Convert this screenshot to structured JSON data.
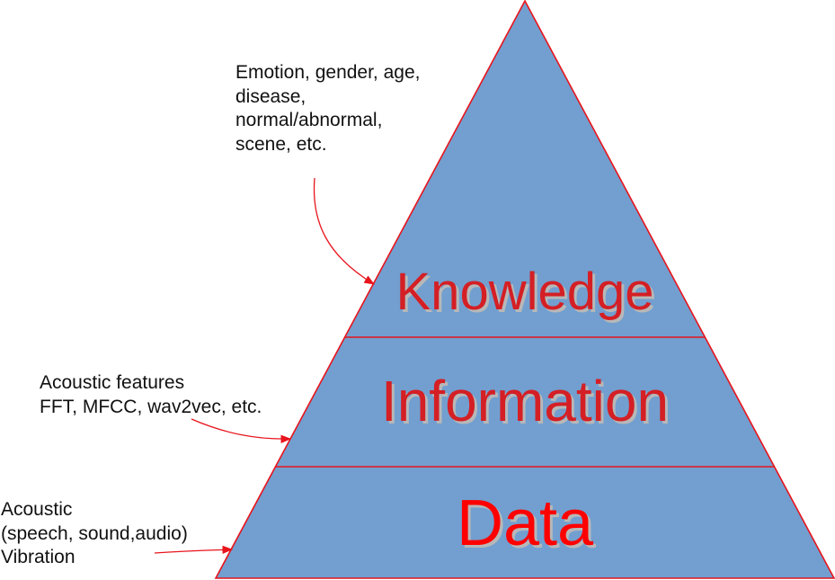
{
  "pyramid": {
    "levels": [
      {
        "label": "Knowledge"
      },
      {
        "label": "Information"
      },
      {
        "label": "Data"
      }
    ],
    "fill_color": "#729FCF",
    "outline_color": "#E8141C",
    "label_color": "#D41F25",
    "data_label_color": "#FF0000",
    "label_shadow_color": "#B8B8B8"
  },
  "annotations": {
    "knowledge": {
      "lines": [
        "Emotion, gender, age,",
        "disease,",
        "normal/abnormal,",
        "scene, etc."
      ]
    },
    "information": {
      "lines": [
        "Acoustic features",
        "FFT, MFCC, wav2vec, etc."
      ]
    },
    "data": {
      "lines": [
        "Acoustic",
        "(speech, sound,audio)",
        "Vibration"
      ]
    }
  },
  "arrow_color": "#E8141C"
}
